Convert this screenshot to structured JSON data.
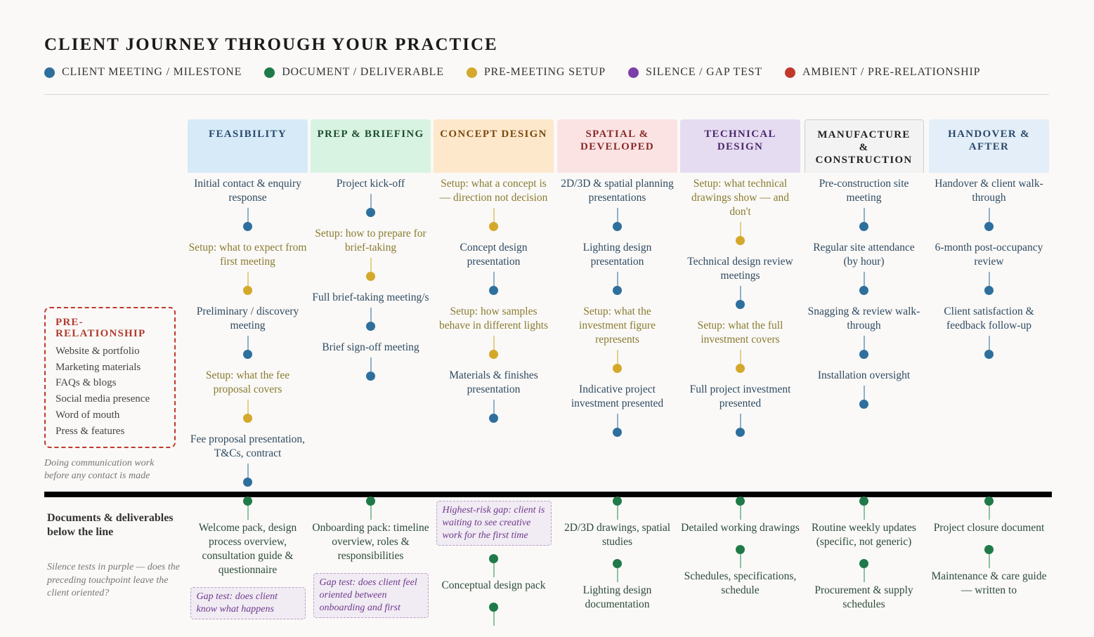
{
  "title": "CLIENT JOURNEY THROUGH YOUR PRACTICE",
  "colors": {
    "meeting": "#2e6f9e",
    "document": "#1f7a48",
    "setup": "#d4a82a",
    "silence": "#7b3fa8",
    "ambient": "#c0392b",
    "meeting_text": "#2f4a62",
    "setup_text": "#8a7a30"
  },
  "legend": [
    {
      "label": "CLIENT MEETING / MILESTONE",
      "color": "#2e6f9e"
    },
    {
      "label": "DOCUMENT / DELIVERABLE",
      "color": "#1f7a48"
    },
    {
      "label": "PRE-MEETING SETUP",
      "color": "#d4a82a"
    },
    {
      "label": "SILENCE / GAP TEST",
      "color": "#7b3fa8"
    },
    {
      "label": "AMBIENT / PRE-RELATIONSHIP",
      "color": "#c0392b"
    }
  ],
  "pre_relationship": {
    "title": "PRE-RELATIONSHIP",
    "items": [
      "Website & portfolio",
      "Marketing materials",
      "FAQs & blogs",
      "Social media presence",
      "Word of mouth",
      "Press & features"
    ],
    "note": "Doing communication work before any contact is made"
  },
  "below": {
    "title": "Documents & deliverables below the line",
    "note": "Silence tests in purple — does the preceding touchpoint leave the client oriented?"
  },
  "phases": [
    {
      "name": "FEASIBILITY",
      "bg": "#d6eaf8",
      "fg": "#2b4a6a",
      "touchpoints": [
        {
          "type": "meeting",
          "text": "Initial contact & enquiry response"
        },
        {
          "type": "setup",
          "text": "Setup: what to expect from first meeting"
        },
        {
          "type": "meeting",
          "text": "Preliminary / discovery meeting"
        },
        {
          "type": "setup",
          "text": "Setup: what the fee proposal covers"
        },
        {
          "type": "meeting",
          "text": "Fee proposal presentation, T&Cs, contract"
        }
      ],
      "documents": [
        {
          "type": "document",
          "text": "Welcome pack, design process overview, consultation guide & questionnaire"
        },
        {
          "type": "gap",
          "text": "Gap test: does client know what happens"
        }
      ]
    },
    {
      "name": "PREP & BRIEFING",
      "bg": "#d8f3e2",
      "fg": "#1e4d2e",
      "touchpoints": [
        {
          "type": "meeting",
          "text": "Project kick-off"
        },
        {
          "type": "setup",
          "text": "Setup: how to prepare for brief-taking"
        },
        {
          "type": "meeting",
          "text": "Full brief-taking meeting/s"
        },
        {
          "type": "meeting",
          "text": "Brief sign-off meeting"
        }
      ],
      "documents": [
        {
          "type": "document",
          "text": "Onboarding pack: timeline overview, roles & responsibilities"
        },
        {
          "type": "gap",
          "text": "Gap test: does client feel oriented between onboarding and first"
        }
      ]
    },
    {
      "name": "CONCEPT DESIGN",
      "bg": "#fde8cc",
      "fg": "#7a4a10",
      "touchpoints": [
        {
          "type": "setup",
          "text": "Setup: what a concept is — direction not decision"
        },
        {
          "type": "meeting",
          "text": "Concept design presentation"
        },
        {
          "type": "setup",
          "text": "Setup: how samples behave in different lights"
        },
        {
          "type": "meeting",
          "text": "Materials & finishes presentation"
        }
      ],
      "documents": [
        {
          "type": "gap",
          "text": "Highest-risk gap: client is waiting to see creative work for the first time"
        },
        {
          "type": "document",
          "text": "Conceptual design pack"
        },
        {
          "type": "document",
          "text": ""
        }
      ]
    },
    {
      "name": "SPATIAL & DEVELOPED",
      "bg": "#fbe3e3",
      "fg": "#8a2a2a",
      "touchpoints": [
        {
          "type": "meeting",
          "text": "2D/3D & spatial planning presentations"
        },
        {
          "type": "meeting",
          "text": "Lighting design presentation"
        },
        {
          "type": "setup",
          "text": "Setup: what the investment figure represents"
        },
        {
          "type": "meeting",
          "text": "Indicative project investment presented"
        }
      ],
      "documents": [
        {
          "type": "document",
          "text": "2D/3D drawings, spatial studies"
        },
        {
          "type": "document",
          "text": "Lighting design documentation"
        }
      ]
    },
    {
      "name": "TECHNICAL DESIGN",
      "bg": "#e6dcf2",
      "fg": "#4a2a6a",
      "touchpoints": [
        {
          "type": "setup",
          "text": "Setup: what technical drawings show — and don't"
        },
        {
          "type": "meeting",
          "text": "Technical design review meetings"
        },
        {
          "type": "setup",
          "text": "Setup: what the full investment covers"
        },
        {
          "type": "meeting",
          "text": "Full project investment presented"
        }
      ],
      "documents": [
        {
          "type": "document",
          "text": "Detailed working drawings"
        },
        {
          "type": "document",
          "text": "Schedules, specifications, schedule"
        }
      ]
    },
    {
      "name": "MANUFACTURE & CONSTRUCTION",
      "bg": "#f3f3f3",
      "fg": "#222222",
      "bordered": true,
      "touchpoints": [
        {
          "type": "meeting",
          "text": "Pre-construction site meeting"
        },
        {
          "type": "meeting",
          "text": "Regular site attendance (by hour)"
        },
        {
          "type": "meeting",
          "text": "Snagging & review walk-through"
        },
        {
          "type": "meeting",
          "text": "Installation oversight"
        }
      ],
      "documents": [
        {
          "type": "document",
          "text": "Routine weekly updates (specific, not generic)"
        },
        {
          "type": "document",
          "text": "Procurement & supply schedules"
        }
      ]
    },
    {
      "name": "HANDOVER & AFTER",
      "bg": "#e3eef8",
      "fg": "#2b4a6a",
      "touchpoints": [
        {
          "type": "meeting",
          "text": "Handover & client walk-through"
        },
        {
          "type": "meeting",
          "text": "6-month post-occupancy review"
        },
        {
          "type": "meeting",
          "text": "Client satisfaction & feedback follow-up"
        }
      ],
      "documents": [
        {
          "type": "document",
          "text": "Project closure document"
        },
        {
          "type": "document",
          "text": "Maintenance & care guide — written to"
        }
      ]
    }
  ]
}
